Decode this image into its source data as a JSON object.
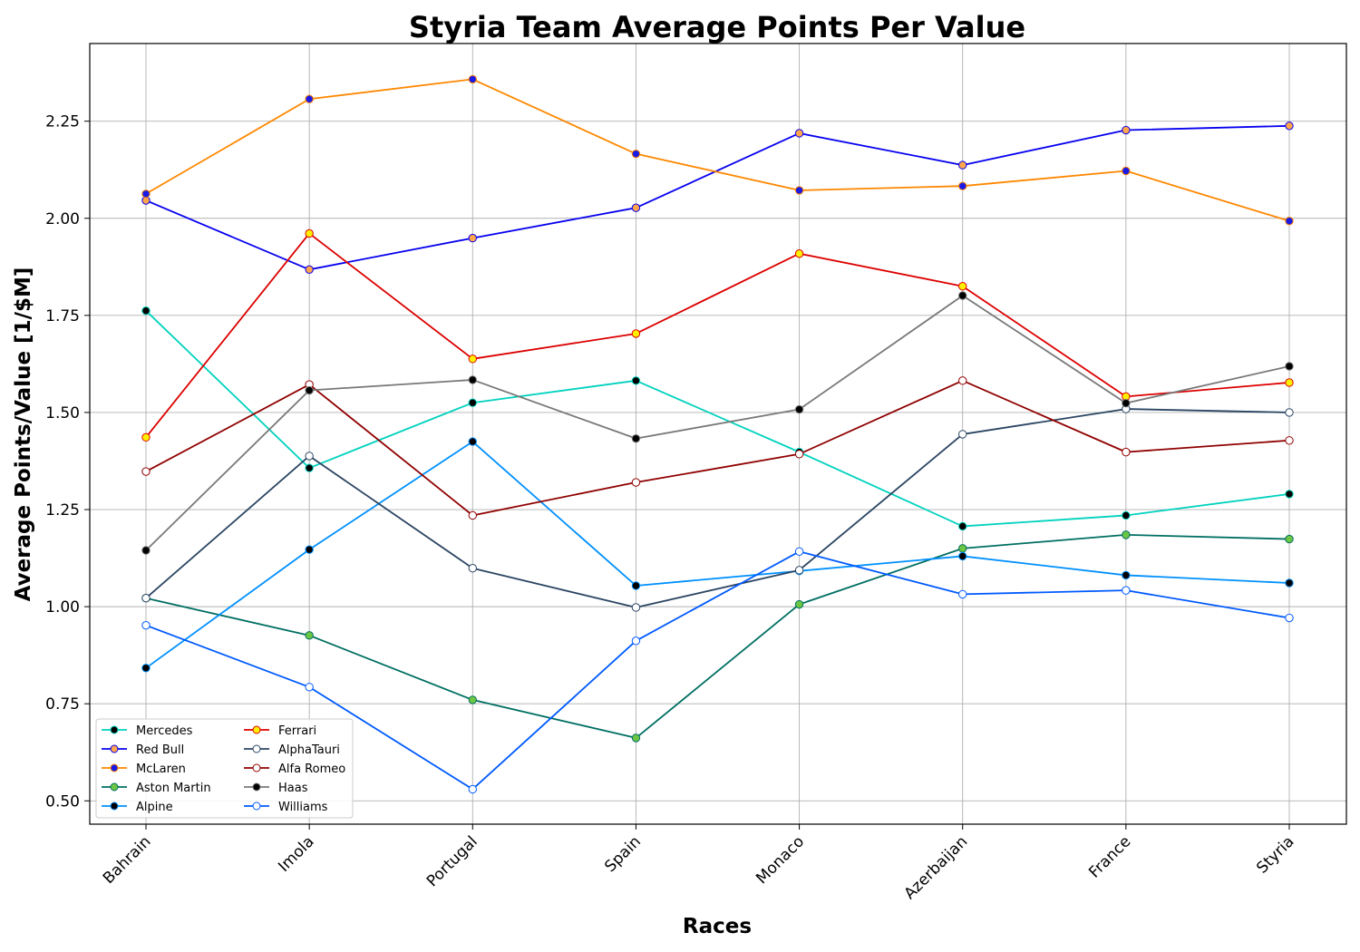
{
  "chart_data": {
    "type": "line",
    "title": "Styria Team Average Points Per Value",
    "xlabel": "Races",
    "ylabel": "Average Points/Value [1/$M]",
    "categories": [
      "Bahrain",
      "Imola",
      "Portugal",
      "Spain",
      "Monaco",
      "Azerbaijan",
      "France",
      "Styria"
    ],
    "ylim": [
      0.44,
      2.45
    ],
    "yticks": [
      "0.50",
      "0.75",
      "1.00",
      "1.25",
      "1.50",
      "1.75",
      "2.00",
      "2.25"
    ],
    "grid": true,
    "legend_position": "bottom-left",
    "series": [
      {
        "name": "Mercedes",
        "line_color": "#00d2be",
        "marker_face": "#000000",
        "marker_edge": "#00d2be",
        "values": [
          1.762,
          1.357,
          1.525,
          1.582,
          1.398,
          1.207,
          1.235,
          1.29
        ]
      },
      {
        "name": "Red Bull",
        "line_color": "#0600ef",
        "marker_face": "#ffa64d",
        "marker_edge": "#0600ef",
        "values": [
          2.046,
          1.868,
          1.949,
          2.027,
          2.219,
          2.137,
          2.227,
          2.238
        ]
      },
      {
        "name": "McLaren",
        "line_color": "#ff8700",
        "marker_face": "#1a1ae6",
        "marker_edge": "#ff8700",
        "values": [
          2.063,
          2.307,
          2.358,
          2.166,
          2.072,
          2.083,
          2.122,
          1.993
        ]
      },
      {
        "name": "Aston Martin",
        "line_color": "#006f62",
        "marker_face": "#6cc644",
        "marker_edge": "#006f62",
        "values": [
          1.022,
          0.926,
          0.76,
          0.662,
          1.006,
          1.15,
          1.185,
          1.174
        ]
      },
      {
        "name": "Alpine",
        "line_color": "#0090ff",
        "marker_face": "#000000",
        "marker_edge": "#0090ff",
        "values": [
          0.842,
          1.147,
          1.425,
          1.054,
          1.092,
          1.13,
          1.081,
          1.061
        ]
      },
      {
        "name": "Ferrari",
        "line_color": "#dc0000",
        "marker_face": "#fff000",
        "marker_edge": "#dc0000",
        "values": [
          1.436,
          1.961,
          1.638,
          1.703,
          1.909,
          1.825,
          1.541,
          1.577
        ]
      },
      {
        "name": "AlphaTauri",
        "line_color": "#2b4562",
        "marker_face": "#ffffff",
        "marker_edge": "#2b4562",
        "values": [
          1.022,
          1.388,
          1.099,
          0.998,
          1.094,
          1.444,
          1.509,
          1.5
        ]
      },
      {
        "name": "Alfa Romeo",
        "line_color": "#900000",
        "marker_face": "#ffffff",
        "marker_edge": "#900000",
        "values": [
          1.348,
          1.572,
          1.235,
          1.32,
          1.393,
          1.582,
          1.398,
          1.428
        ]
      },
      {
        "name": "Haas",
        "line_color": "#787878",
        "marker_face": "#000000",
        "marker_edge": "#787878",
        "values": [
          1.145,
          1.557,
          1.584,
          1.433,
          1.508,
          1.801,
          1.524,
          1.619
        ]
      },
      {
        "name": "Williams",
        "line_color": "#005aff",
        "marker_face": "#ffffff",
        "marker_edge": "#005aff",
        "values": [
          0.952,
          0.793,
          0.53,
          0.912,
          1.142,
          1.032,
          1.042,
          0.971
        ]
      }
    ]
  }
}
